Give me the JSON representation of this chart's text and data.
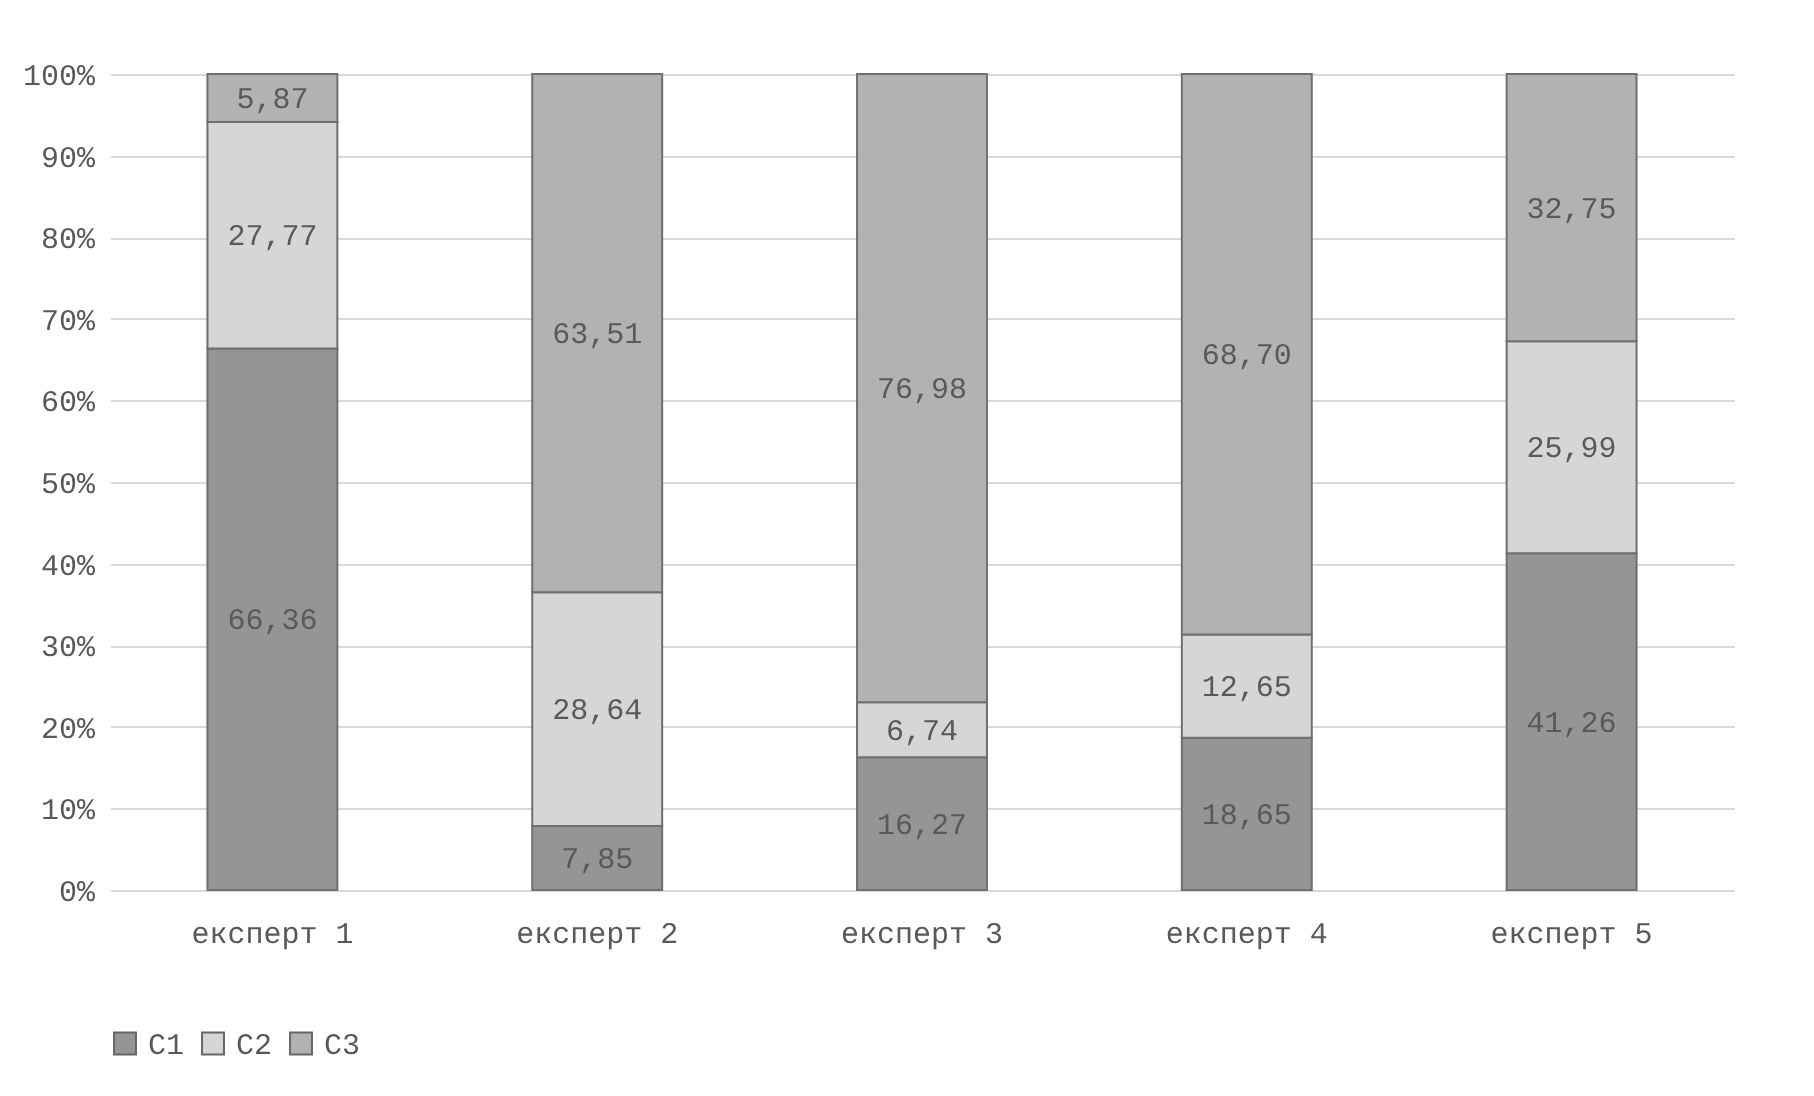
{
  "chart_data": {
    "type": "bar",
    "stacked": true,
    "categories": [
      "експерт 1",
      "експерт 2",
      "експерт 3",
      "експерт 4",
      "експерт 5"
    ],
    "series": [
      {
        "name": "C1",
        "color": "#959595",
        "values": [
          66.36,
          7.85,
          16.27,
          18.65,
          41.26
        ],
        "value_labels": [
          "66,36",
          "7,85",
          "16,27",
          "18,65",
          "41,26"
        ]
      },
      {
        "name": "C2",
        "color": "#d6d6d6",
        "values": [
          27.77,
          28.64,
          6.74,
          12.65,
          25.99
        ],
        "value_labels": [
          "27,77",
          "28,64",
          "6,74",
          "12,65",
          "25,99"
        ]
      },
      {
        "name": "C3",
        "color": "#b2b2b2",
        "values": [
          5.87,
          63.51,
          76.98,
          68.7,
          32.75
        ],
        "value_labels": [
          "5,87",
          "63,51",
          "76,98",
          "68,70",
          "32,75"
        ]
      }
    ],
    "ylim": [
      0,
      100
    ],
    "yticks": [
      {
        "value": 0,
        "label": "0%"
      },
      {
        "value": 10,
        "label": "10%"
      },
      {
        "value": 20,
        "label": "20%"
      },
      {
        "value": 30,
        "label": "30%"
      },
      {
        "value": 40,
        "label": "40%"
      },
      {
        "value": 50,
        "label": "50%"
      },
      {
        "value": 60,
        "label": "60%"
      },
      {
        "value": 70,
        "label": "70%"
      },
      {
        "value": 80,
        "label": "80%"
      },
      {
        "value": 90,
        "label": "90%"
      },
      {
        "value": 100,
        "label": "100%"
      }
    ],
    "grid": "y",
    "legend": "bottom"
  }
}
